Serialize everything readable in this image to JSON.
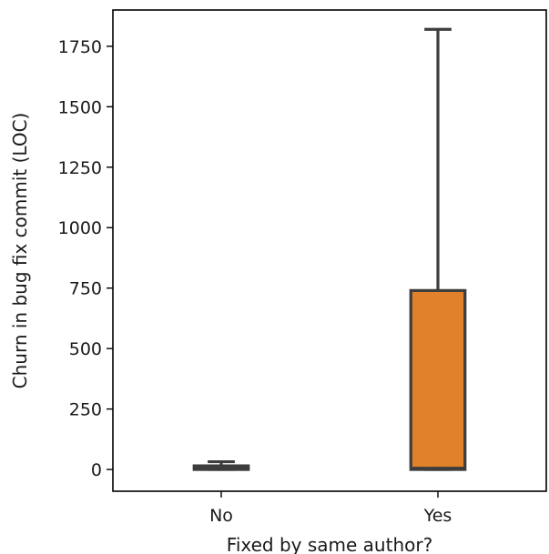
{
  "chart_data": {
    "type": "box",
    "title": "",
    "xlabel": "Fixed by same author?",
    "ylabel": "Churn in bug fix commit (LOC)",
    "ylim": [
      -90,
      1900
    ],
    "yticks": [
      0,
      250,
      500,
      750,
      1000,
      1250,
      1500,
      1750
    ],
    "ytick_labels": [
      "0",
      "250",
      "500",
      "750",
      "1000",
      "1250",
      "1500",
      "1750"
    ],
    "categories": [
      "No",
      "Yes"
    ],
    "boxes": [
      {
        "category": "No",
        "whisker_low": 0,
        "q1": 0,
        "median": 5,
        "q3": 15,
        "whisker_high": 32,
        "color": "#3a7fc1"
      },
      {
        "category": "Yes",
        "whisker_low": 0,
        "q1": 0,
        "median": 5,
        "q3": 740,
        "whisker_high": 1820,
        "color": "#e1812c"
      }
    ],
    "grid": false,
    "line_color": "#3d3d3d"
  }
}
